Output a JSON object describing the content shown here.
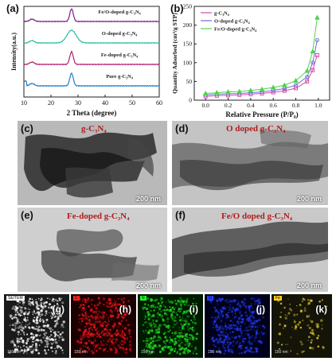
{
  "panels": {
    "a": "(a)",
    "b": "(b)",
    "c": "(c)",
    "d": "(d)",
    "e": "(e)",
    "f": "(f)",
    "g": "(g)",
    "h": "(h)",
    "i": "(i)",
    "j": "(j)",
    "k": "(k)"
  },
  "chart_data": [
    {
      "type": "line",
      "xlabel": "2 Theta (degree)",
      "ylabel": "Intensity(a.u.)",
      "xlim": [
        10,
        60
      ],
      "x_ticks": [
        "10",
        "20",
        "30",
        "40",
        "50",
        "60"
      ],
      "y_ticks_shown": false,
      "legend": "inline labels above each trace",
      "peak_2theta": 27.6,
      "series": [
        {
          "name": "Fe/O-doped g-C₃N₄",
          "color": "#7a1f86",
          "offset": 3
        },
        {
          "name": "O-doped g-C₃N₄",
          "color": "#2bbf9f",
          "offset": 2
        },
        {
          "name": "Fe-doped g-C₃N₄",
          "color": "#b3206e",
          "offset": 1
        },
        {
          "name": "Pure g-C₃N₄",
          "color": "#1e7fc4",
          "offset": 0
        }
      ]
    },
    {
      "type": "line",
      "xlabel": "Relative Pressure (P/P₀)",
      "ylabel": "Quantity Adsorbed (cm³/g STP)",
      "xlim": [
        -0.1,
        1.1
      ],
      "ylim": [
        0,
        250
      ],
      "x_ticks": [
        "0.0",
        "0.2",
        "0.4",
        "0.6",
        "0.8",
        "1.0"
      ],
      "y_ticks": [
        "0",
        "50",
        "100",
        "150",
        "200",
        "250"
      ],
      "legend": "top-left",
      "x": [
        0.0,
        0.1,
        0.2,
        0.3,
        0.4,
        0.5,
        0.6,
        0.7,
        0.8,
        0.9,
        0.95,
        0.99
      ],
      "series": [
        {
          "name": "g-C₃N₄",
          "color": "#d84aa8",
          "marker": "square",
          "values": [
            10,
            12,
            13,
            14,
            16,
            18,
            21,
            25,
            32,
            50,
            80,
            120
          ]
        },
        {
          "name": "O-doped g-C₃N₄",
          "color": "#6f6fd0",
          "marker": "circle",
          "values": [
            14,
            16,
            17,
            18,
            20,
            22,
            26,
            31,
            40,
            62,
            100,
            160
          ]
        },
        {
          "name": "Fe/O-doped g-C₃N₄",
          "color": "#4dd34d",
          "marker": "triangle",
          "values": [
            18,
            20,
            22,
            23,
            26,
            29,
            34,
            40,
            52,
            78,
            130,
            220
          ]
        }
      ]
    }
  ],
  "tem": {
    "c": {
      "label": "g-C₃N₄",
      "scale": "200 nm"
    },
    "d": {
      "label": "O doped g-C₃N₄",
      "scale": "200 nm"
    },
    "e": {
      "label": "Fe-doped g-C₃N₄",
      "scale": "200 nm"
    },
    "f": {
      "label": "Fe/O doped g-C₃N₄",
      "scale": "200 nm"
    }
  },
  "eds": [
    {
      "key": "g",
      "tag": "SE/TEM",
      "tag_color": "#ffffff",
      "bg": "#1a1a1a",
      "dot": "#ffffff",
      "scale": "150 nm"
    },
    {
      "key": "h",
      "tag": "C",
      "tag_color": "#ff2020",
      "bg": "#1a0000",
      "dot": "#e0141a",
      "scale": "150 nm"
    },
    {
      "key": "i",
      "tag": "N",
      "tag_color": "#20ff20",
      "bg": "#001a00",
      "dot": "#1ed21e",
      "scale": "150 nm"
    },
    {
      "key": "j",
      "tag": "O",
      "tag_color": "#2040ff",
      "bg": "#00001a",
      "dot": "#2035e0",
      "scale": "150 nm"
    },
    {
      "key": "k",
      "tag": "Fe",
      "tag_color": "#ffd020",
      "bg": "#141408",
      "dot": "#d8c030",
      "scale": "150 nm"
    }
  ]
}
